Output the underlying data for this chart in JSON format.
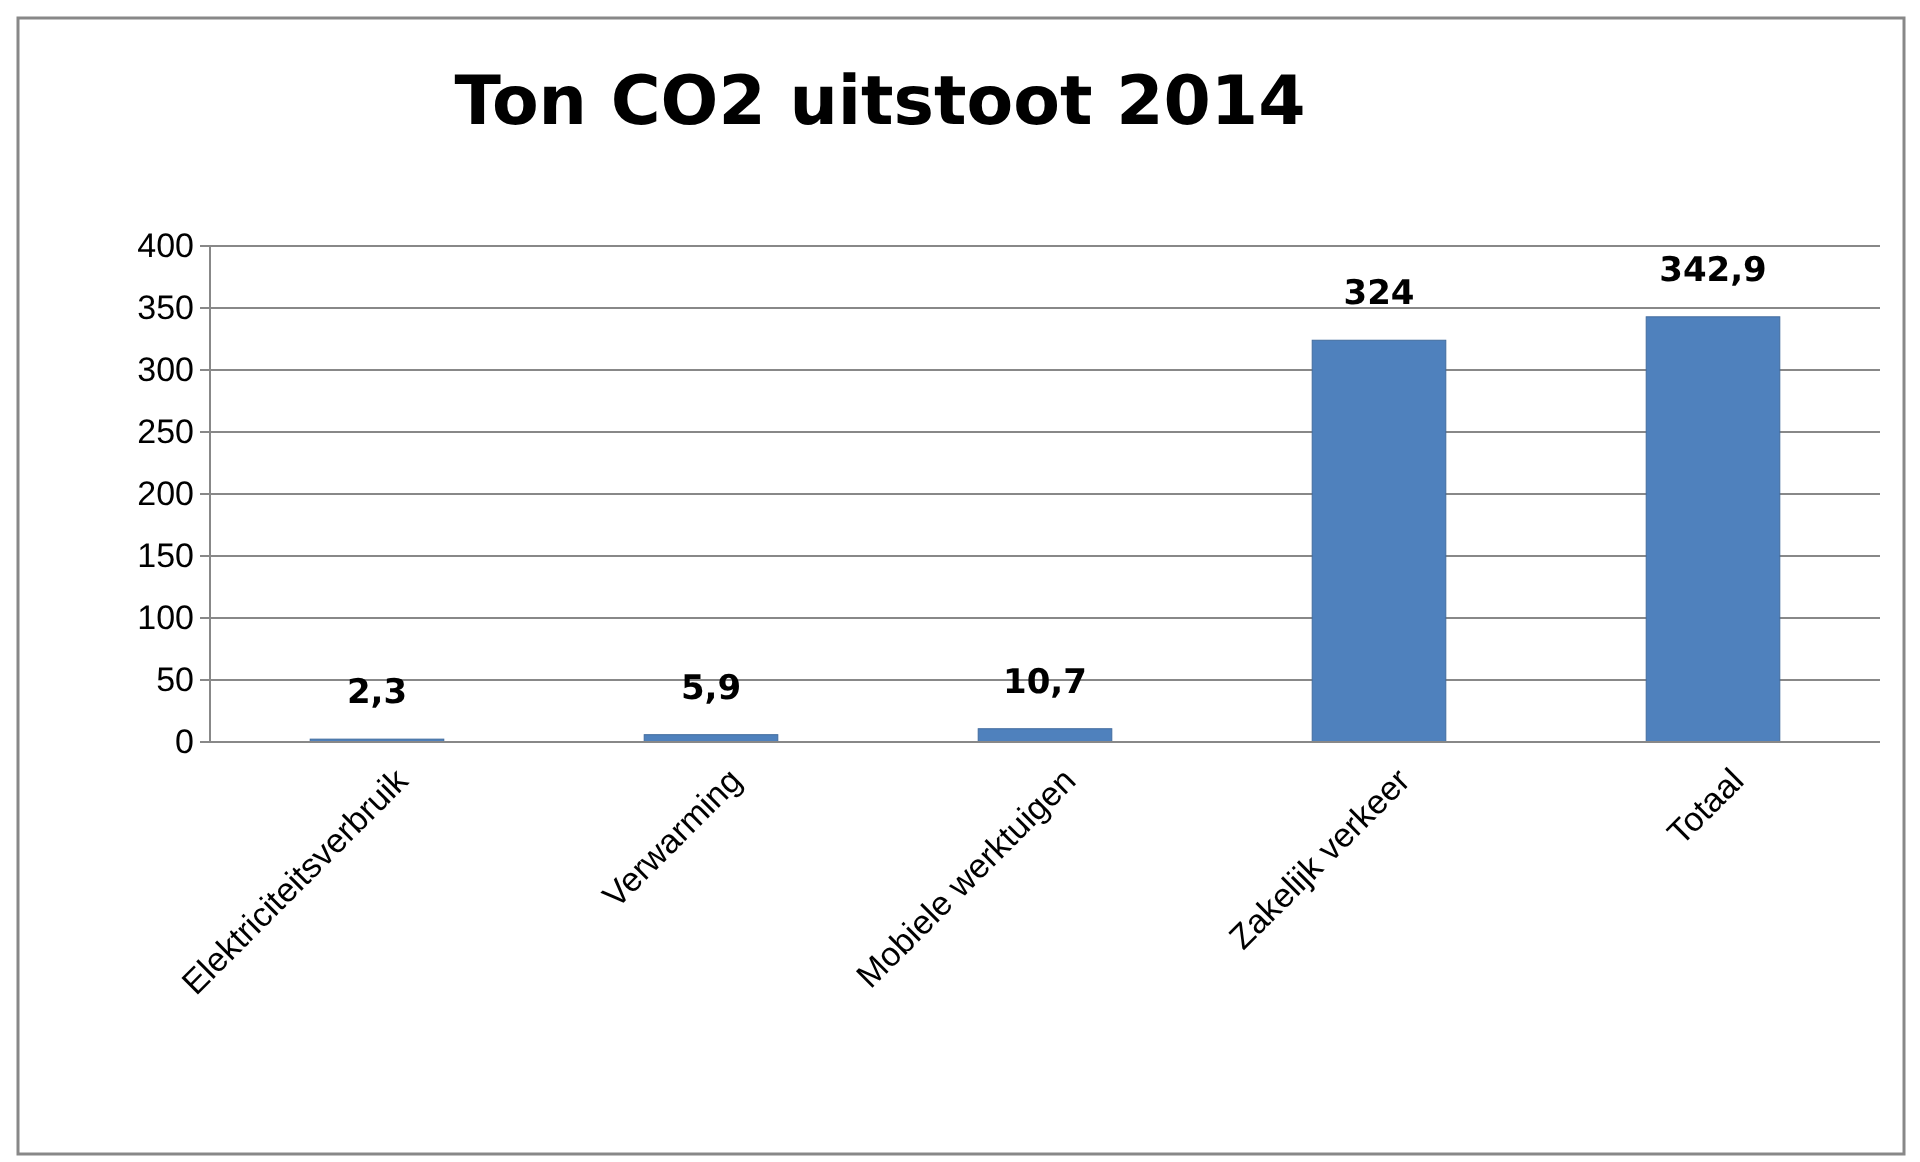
{
  "chart_data": {
    "type": "bar",
    "title": "Ton CO2 uitstoot 2014",
    "categories": [
      "Elektriciteitsverbruik",
      "Verwarming",
      "Mobiele werktuigen",
      "Zakelijk verkeer",
      "Totaal"
    ],
    "values": [
      2.3,
      5.9,
      10.7,
      324,
      342.9
    ],
    "value_labels": [
      "2,3",
      "5,9",
      "10,7",
      "324",
      "342,9"
    ],
    "color": "#4f81bd",
    "ylim": [
      0,
      400
    ],
    "yticks": [
      0,
      50,
      100,
      150,
      200,
      250,
      300,
      350,
      400
    ],
    "grid": "y"
  }
}
